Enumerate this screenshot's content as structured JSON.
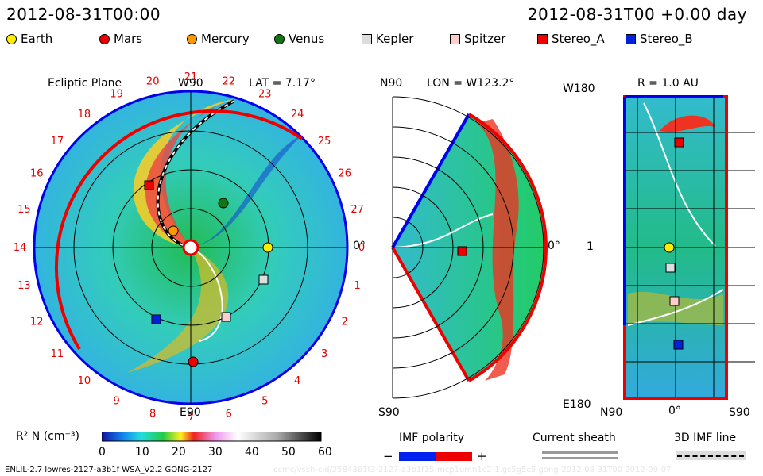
{
  "header": {
    "date": "2012-08-31T00:00",
    "elapsed": "2012-08-31T00 +0.00 day"
  },
  "legend": [
    {
      "name": "Earth",
      "color": "#ffee00",
      "shape": "circle"
    },
    {
      "name": "Mars",
      "color": "#ee0000",
      "shape": "circle"
    },
    {
      "name": "Mercury",
      "color": "#ff9900",
      "shape": "circle"
    },
    {
      "name": "Venus",
      "color": "#117711",
      "shape": "circle"
    },
    {
      "name": "Kepler",
      "color": "#dddddd",
      "shape": "square"
    },
    {
      "name": "Spitzer",
      "color": "#ffcccc",
      "shape": "square"
    },
    {
      "name": "Stereo_A",
      "color": "#ee0000",
      "shape": "square"
    },
    {
      "name": "Stereo_B",
      "color": "#0022dd",
      "shape": "square"
    }
  ],
  "panels": {
    "ecliptic": {
      "title": "Ecliptic Plane",
      "top_label": "W90",
      "lat": "LAT = 7.17°",
      "bottom_label": "E90",
      "right_label": "0°",
      "hours": [
        "20",
        "21",
        "22",
        "23",
        "24",
        "25",
        "26",
        "27",
        "0",
        "1",
        "2",
        "3",
        "4",
        "5",
        "6",
        "7",
        "8",
        "9",
        "10",
        "11",
        "12",
        "13",
        "14",
        "15",
        "16",
        "17",
        "18",
        "19"
      ]
    },
    "meridional": {
      "top_left": "N90",
      "lon": "LON = W123.2°",
      "bottom_left": "S90",
      "right_label": "0°"
    },
    "radial": {
      "top_left": "W180",
      "r": "R = 1.0 AU",
      "mid_left": "1",
      "bottom_left": "E180",
      "x_left": "N90",
      "x_mid": "0°",
      "x_right": "S90"
    }
  },
  "colorbar": {
    "label": "R² N (cm⁻³)",
    "ticks": [
      "0",
      "10",
      "20",
      "30",
      "40",
      "50",
      "60"
    ]
  },
  "imf": {
    "title": "IMF polarity",
    "minus": "−",
    "plus": "+",
    "neg_color": "#0022ee",
    "pos_color": "#ee0000"
  },
  "sheath": {
    "title": "Current sheath"
  },
  "imf3d": {
    "title": "3D IMF line"
  },
  "footer": {
    "model": "ENLIL-2.7 lowres-2127-a3b1f WSA_V2.2 GONG-2127",
    "watermark": "ccmc/vssh-cld/2584361f3-2127-a3b1f15-mcp1umn1c2-1.gs5g5c5 gong-2012-08-31T00   2012-09-07"
  }
}
